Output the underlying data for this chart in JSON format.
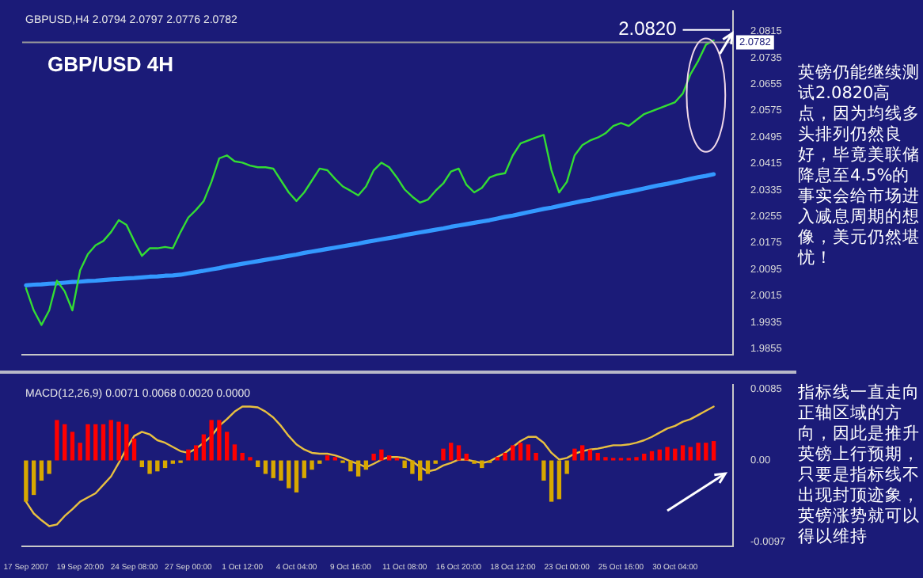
{
  "chart_data": [
    {
      "type": "line",
      "title": "GBP/USD 4H",
      "categories": [
        null,
        null,
        null,
        null,
        null,
        null,
        null,
        null,
        null,
        null,
        null,
        null,
        null,
        null,
        null,
        null,
        null,
        null,
        null,
        null,
        null,
        null,
        null,
        null,
        null,
        null,
        null,
        null,
        null,
        null,
        null,
        null,
        null,
        null,
        null,
        null,
        null,
        null,
        null,
        null,
        null,
        null,
        null,
        null,
        null,
        null,
        null,
        null,
        null,
        null,
        null,
        null,
        null,
        null,
        null,
        null,
        null,
        null,
        null,
        null,
        null,
        null,
        null,
        null,
        null,
        null,
        null,
        null,
        null,
        null,
        null,
        null,
        null,
        null,
        null,
        null,
        null,
        null,
        null,
        null,
        null,
        null,
        null,
        null,
        null,
        null,
        null,
        null,
        null,
        null,
        null,
        null
      ],
      "series": [
        {
          "color": "#33dd33",
          "values": [
            2.0038,
            1.9971,
            1.9927,
            1.9971,
            2.0061,
            2.0029,
            1.9971,
            2.0092,
            2.0141,
            2.0168,
            2.0181,
            2.0208,
            2.0244,
            2.023,
            2.0181,
            2.0136,
            2.0159,
            2.0159,
            2.0163,
            2.0159,
            2.0208,
            2.0252,
            2.0275,
            2.0302,
            2.036,
            2.0431,
            2.044,
            2.0422,
            2.0418,
            2.0409,
            2.0404,
            2.0404,
            2.04,
            2.0364,
            2.0328,
            2.0302,
            2.0328,
            2.0364,
            2.04,
            2.0395,
            2.0369,
            2.0346,
            2.0333,
            2.0319,
            2.0346,
            2.0395,
            2.0418,
            2.0404,
            2.0373,
            2.0337,
            2.0315,
            2.0297,
            2.0306,
            2.0333,
            2.0355,
            2.0391,
            2.04,
            2.0351,
            2.0328,
            2.0342,
            2.0373,
            2.0382,
            2.0386,
            2.044,
            2.0476,
            2.0485,
            2.0494,
            2.0502,
            2.0395,
            2.0328,
            2.036,
            2.044,
            2.0471,
            2.0485,
            2.0494,
            2.0507,
            2.0529,
            2.0538,
            2.0529,
            2.0547,
            2.0565,
            2.0574,
            2.0583,
            2.0592,
            2.0601,
            2.0627,
            2.0686,
            2.0726,
            2.0775,
            2.0788,
            null,
            null
          ]
        },
        {
          "color": "#3399ff",
          "values": [
            2.0047,
            2.0049,
            2.005,
            2.0052,
            2.0053,
            2.0055,
            2.0057,
            2.0058,
            2.006,
            2.0061,
            2.0063,
            2.0065,
            2.0066,
            2.0068,
            2.0069,
            2.0071,
            2.0073,
            2.0074,
            2.0076,
            2.0077,
            2.0079,
            2.0083,
            2.0087,
            2.0091,
            2.0095,
            2.0099,
            2.0104,
            2.0108,
            2.0112,
            2.0116,
            2.012,
            2.0124,
            2.0128,
            2.0132,
            2.0136,
            2.014,
            2.0145,
            2.0149,
            2.0153,
            2.0157,
            2.0161,
            2.0165,
            2.0169,
            2.0173,
            2.0178,
            2.0182,
            2.0186,
            2.019,
            2.0194,
            2.0199,
            2.0203,
            2.0207,
            2.0211,
            2.0215,
            2.0219,
            2.0224,
            2.0228,
            2.0232,
            2.0236,
            2.024,
            2.0244,
            2.0249,
            2.0254,
            2.0258,
            2.0263,
            2.0268,
            2.0273,
            2.0278,
            2.0282,
            2.0287,
            2.0292,
            2.0297,
            2.0302,
            2.0306,
            2.0311,
            2.0316,
            2.0321,
            2.0326,
            2.033,
            2.0335,
            2.034,
            2.0345,
            2.035,
            2.0354,
            2.0359,
            2.0364,
            2.0369,
            2.0374,
            2.0378,
            2.0383,
            null,
            null
          ]
        }
      ],
      "ylim": [
        1.9837,
        2.0877
      ],
      "yticks": [
        1.9855,
        1.9935,
        2.0015,
        2.0095,
        2.0175,
        2.0255,
        2.0335,
        2.0415,
        2.0495,
        2.0575,
        2.0655,
        2.0735,
        2.0815
      ],
      "tick_labels": "y",
      "ref_lines": [
        {
          "axis": "y",
          "value": 2.0782,
          "label": "2.0782",
          "color": "#9a9a9a"
        }
      ],
      "annotations": [
        "GBPUSD,H4 2.0794 2.0797 2.0776 2.0782",
        "2.0820",
        "英镑仍能继续测试2.0820高点，因为均线多头排列仍然良好，毕竟美联储降息至4.5%的事实会给市场进入减息周期的想像，美元仍然堪忧！"
      ]
    },
    {
      "type": "bar",
      "categories": [
        "17 Sep 2007",
        null,
        null,
        null,
        null,
        null,
        null,
        "19 Sep 20:00",
        null,
        null,
        null,
        null,
        null,
        null,
        "24 Sep 08:00",
        null,
        null,
        null,
        null,
        null,
        null,
        "27 Sep 00:00",
        null,
        null,
        null,
        null,
        null,
        null,
        "1 Oct 12:00",
        null,
        null,
        null,
        null,
        null,
        null,
        "4 Oct 04:00",
        null,
        null,
        null,
        null,
        null,
        null,
        "9 Oct 16:00",
        null,
        null,
        null,
        null,
        null,
        null,
        "11 Oct 08:00",
        null,
        null,
        null,
        null,
        null,
        null,
        "16 Oct 20:00",
        null,
        null,
        null,
        null,
        null,
        null,
        "18 Oct 12:00",
        null,
        null,
        null,
        null,
        null,
        null,
        "23 Oct 00:00",
        null,
        null,
        null,
        null,
        null,
        null,
        "25 Oct 16:00",
        null,
        null,
        null,
        null,
        null,
        null,
        "30 Oct 04:00",
        null,
        null,
        null,
        null,
        null,
        null,
        null
      ],
      "series": [
        {
          "type": "bar",
          "values": [
            -0.0049,
            -0.0041,
            -0.0024,
            -0.0016,
            0.0048,
            0.0043,
            0.0034,
            0.0021,
            0.0043,
            0.0043,
            0.0043,
            0.0048,
            0.0046,
            0.0043,
            0.0026,
            -0.0008,
            -0.0016,
            -0.0013,
            -0.0009,
            -0.0004,
            -0.0003,
            0.0013,
            0.0018,
            0.0031,
            0.0048,
            0.0048,
            0.0034,
            0.0019,
            0.0009,
            0.0004,
            -0.0008,
            -0.0016,
            -0.0021,
            -0.0024,
            -0.0033,
            -0.0038,
            -0.0021,
            -0.0011,
            -0.0004,
            0.0006,
            0.0004,
            -0.0003,
            -0.0013,
            -0.0019,
            -0.0011,
            0.0008,
            0.0013,
            0.0006,
            0.0003,
            -0.0009,
            -0.0016,
            -0.0024,
            -0.0016,
            -0.0004,
            0.0014,
            0.0021,
            0.0018,
            0.0008,
            -0.0004,
            -0.0009,
            -0.0003,
            0.0004,
            0.0009,
            0.0018,
            0.0021,
            0.0019,
            0.0009,
            -0.0024,
            -0.0049,
            -0.0046,
            -0.0016,
            0.0014,
            0.0018,
            0.0013,
            0.0009,
            0.0004,
            0.0003,
            0.0003,
            0.0003,
            0.0004,
            0.0008,
            0.0011,
            0.0013,
            0.0016,
            0.0014,
            0.0018,
            0.0016,
            0.0021,
            0.0021,
            0.0023,
            null,
            null
          ],
          "colors": [
            "#d8a800",
            "#d8a800",
            "#d8a800",
            "#d8a800",
            "#ff0000",
            "#ff0000",
            "#ff0000",
            "#ff0000",
            "#ff0000",
            "#ff0000",
            "#ff0000",
            "#ff0000",
            "#ff0000",
            "#ff0000",
            "#ff0000",
            "#d8a800",
            "#d8a800",
            "#d8a800",
            "#d8a800",
            "#d8a800",
            "#d8a800",
            "#ff0000",
            "#ff0000",
            "#ff0000",
            "#ff0000",
            "#ff0000",
            "#ff0000",
            "#ff0000",
            "#ff0000",
            "#ff0000",
            "#d8a800",
            "#d8a800",
            "#d8a800",
            "#d8a800",
            "#d8a800",
            "#d8a800",
            "#d8a800",
            "#d8a800",
            "#d8a800",
            "#ff0000",
            "#ff0000",
            "#d8a800",
            "#d8a800",
            "#d8a800",
            "#d8a800",
            "#ff0000",
            "#ff0000",
            "#ff0000",
            "#ff0000",
            "#d8a800",
            "#d8a800",
            "#d8a800",
            "#d8a800",
            "#d8a800",
            "#ff0000",
            "#ff0000",
            "#ff0000",
            "#ff0000",
            "#d8a800",
            "#d8a800",
            "#d8a800",
            "#ff0000",
            "#ff0000",
            "#ff0000",
            "#ff0000",
            "#ff0000",
            "#ff0000",
            "#d8a800",
            "#d8a800",
            "#d8a800",
            "#d8a800",
            "#ff0000",
            "#ff0000",
            "#ff0000",
            "#ff0000",
            "#ff0000",
            "#ff0000",
            "#ff0000",
            "#ff0000",
            "#ff0000",
            "#ff0000",
            "#ff0000",
            "#ff0000",
            "#ff0000",
            "#ff0000",
            "#ff0000",
            "#ff0000",
            "#ff0000",
            "#ff0000",
            "#ff0000",
            null,
            null
          ]
        },
        {
          "type": "line",
          "color": "#e8c040",
          "values": [
            -0.0049,
            -0.0063,
            -0.0071,
            -0.0078,
            -0.0076,
            -0.0066,
            -0.0058,
            -0.0049,
            -0.0044,
            -0.0039,
            -0.0029,
            -0.0019,
            -0.0003,
            0.0014,
            0.0029,
            0.0034,
            0.0031,
            0.0024,
            0.0021,
            0.0016,
            0.0011,
            0.0009,
            0.0014,
            0.0021,
            0.0029,
            0.0041,
            0.0049,
            0.0058,
            0.0064,
            0.0064,
            0.0063,
            0.0058,
            0.0051,
            0.0041,
            0.0029,
            0.0019,
            0.0013,
            0.0009,
            0.0008,
            0.0008,
            0.0006,
            0.0003,
            -0.0001,
            -0.0004,
            -0.0008,
            -0.0004,
            0.0001,
            0.0004,
            0.0004,
            0.0003,
            -0.0001,
            -0.0008,
            -0.0013,
            -0.0011,
            -0.0006,
            -0.0003,
            0.0001,
            0.0001,
            -0.0001,
            -0.0003,
            -0.0001,
            0.0004,
            0.0009,
            0.0016,
            0.0023,
            0.0028,
            0.0028,
            0.0021,
            0.0009,
            0.0001,
            0.0003,
            0.0008,
            0.0011,
            0.0013,
            0.0014,
            0.0016,
            0.0018,
            0.0018,
            0.0019,
            0.0021,
            0.0024,
            0.0028,
            0.0033,
            0.0038,
            0.0041,
            0.0046,
            0.0049,
            0.0054,
            0.0059,
            0.0064,
            null,
            null
          ]
        }
      ],
      "ylim": [
        -0.0102,
        0.009
      ],
      "yticks": [
        -0.0097,
        {
          "value": 0,
          "label": "0.00"
        },
        0.0085
      ],
      "annotations": [
        "MACD(12,26,9) 0.0071 0.0068 0.0020 0.0000",
        "指标线一直走向正轴区域的方向，因此是推升英镑上行预期，只要是指标线不出现封顶迹象，英镑涨势就可以得以维持"
      ]
    }
  ]
}
